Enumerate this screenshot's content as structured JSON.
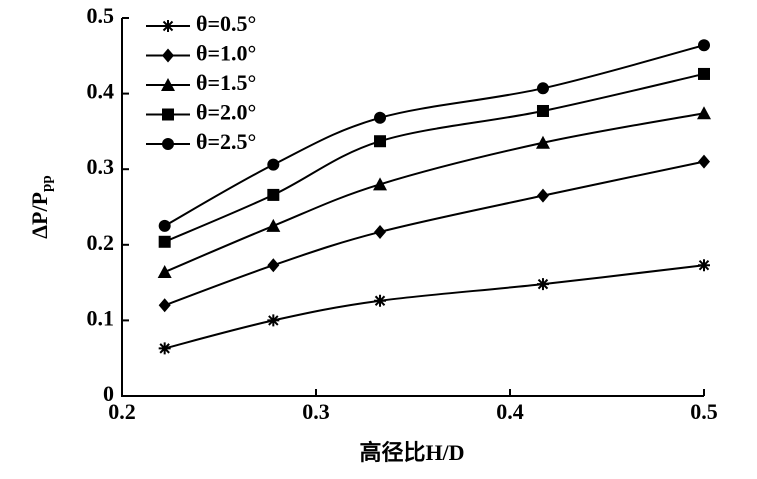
{
  "chart_data": {
    "type": "line",
    "x_label": "高径比H/D",
    "y_label": "ΔP/P",
    "y_label_sub": "pp",
    "x": [
      0.222,
      0.278,
      0.333,
      0.417,
      0.5
    ],
    "xlim": [
      0.2,
      0.5
    ],
    "xticks": [
      0.2,
      0.3,
      0.4,
      0.5
    ],
    "ylim": [
      0,
      0.5
    ],
    "yticks": [
      0,
      0.1,
      0.2,
      0.3,
      0.4,
      0.5
    ],
    "legend": "upper left",
    "series": [
      {
        "name": "θ=0.5°",
        "color": "#000000",
        "marker": "star",
        "values": [
          0.063,
          0.1,
          0.126,
          0.148,
          0.173
        ]
      },
      {
        "name": "θ=1.0°",
        "color": "#000000",
        "marker": "diamond",
        "values": [
          0.12,
          0.173,
          0.217,
          0.265,
          0.31
        ]
      },
      {
        "name": "θ=1.5°",
        "color": "#000000",
        "marker": "triangle",
        "values": [
          0.164,
          0.225,
          0.28,
          0.335,
          0.374
        ]
      },
      {
        "name": "θ=2.0°",
        "color": "#000000",
        "marker": "square",
        "values": [
          0.204,
          0.266,
          0.337,
          0.377,
          0.426
        ]
      },
      {
        "name": "θ=2.5°",
        "color": "#000000",
        "marker": "circle",
        "values": [
          0.225,
          0.306,
          0.368,
          0.407,
          0.464
        ]
      }
    ]
  }
}
